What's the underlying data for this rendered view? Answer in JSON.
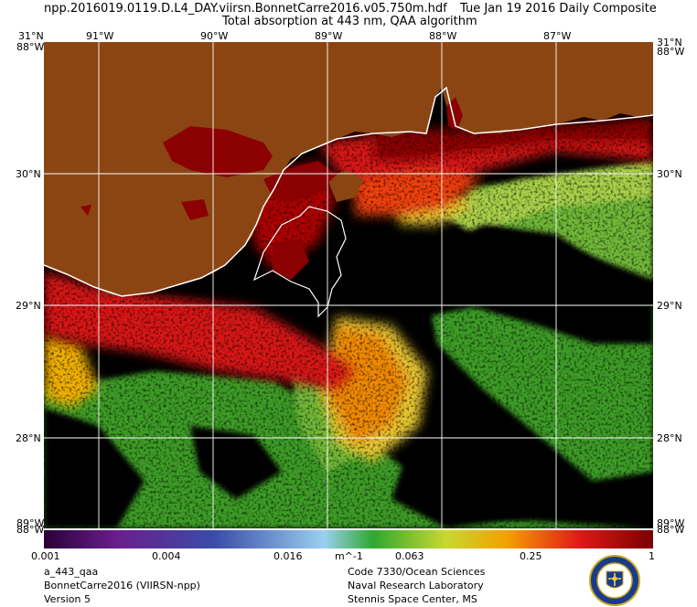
{
  "header": {
    "filename": "npp.2016019.0119.D.L4_DAY.viirsn.BonnetCarre2016.v05.750m.hdf",
    "date": "Tue Jan 19 2016 Daily Composite",
    "product": "Total absorption at 443 nm, QAA algorithm"
  },
  "axes": {
    "top_lon": [
      "91°W",
      "90°W",
      "89°W",
      "88°W",
      "87°W"
    ],
    "lat": [
      "30°N",
      "29°N",
      "28°N"
    ],
    "corner_tl": "31°N",
    "corner_tl2": "88°W",
    "corner_tr": "31°N",
    "corner_tr2": "88°W",
    "corner_bl": "89°W",
    "corner_bl2": "88°W",
    "corner_br": "89°W",
    "corner_br2": "88°W"
  },
  "colorbar": {
    "labels": [
      "0.001",
      "0.004",
      "0.016",
      "0.063",
      "0.25",
      "1"
    ],
    "units": "m^-1",
    "colors": [
      "#2a0038",
      "#6a1e8c",
      "#3a4ca8",
      "#9ad0f0",
      "#2fa82f",
      "#c8d830",
      "#f4a000",
      "#e01818",
      "#7a0000"
    ]
  },
  "footer": {
    "left_line1": "a_443_qaa",
    "left_line2": "BonnetCarre2016 (VIIRSN-npp)",
    "left_line3": "Version 5",
    "right_line1": "Code 7330/Ocean Sciences",
    "right_line2": "Naval Research Laboratory",
    "right_line3": "Stennis Space Center, MS"
  },
  "map_colors": {
    "land": "#8b4513",
    "no_data": "#000000",
    "high": "#8b0000",
    "red": "#d81818",
    "orange": "#f08a00",
    "yellow": "#e8c832",
    "lightgreen": "#a8d048",
    "green": "#3c9c28",
    "grid": "#ffffff"
  }
}
